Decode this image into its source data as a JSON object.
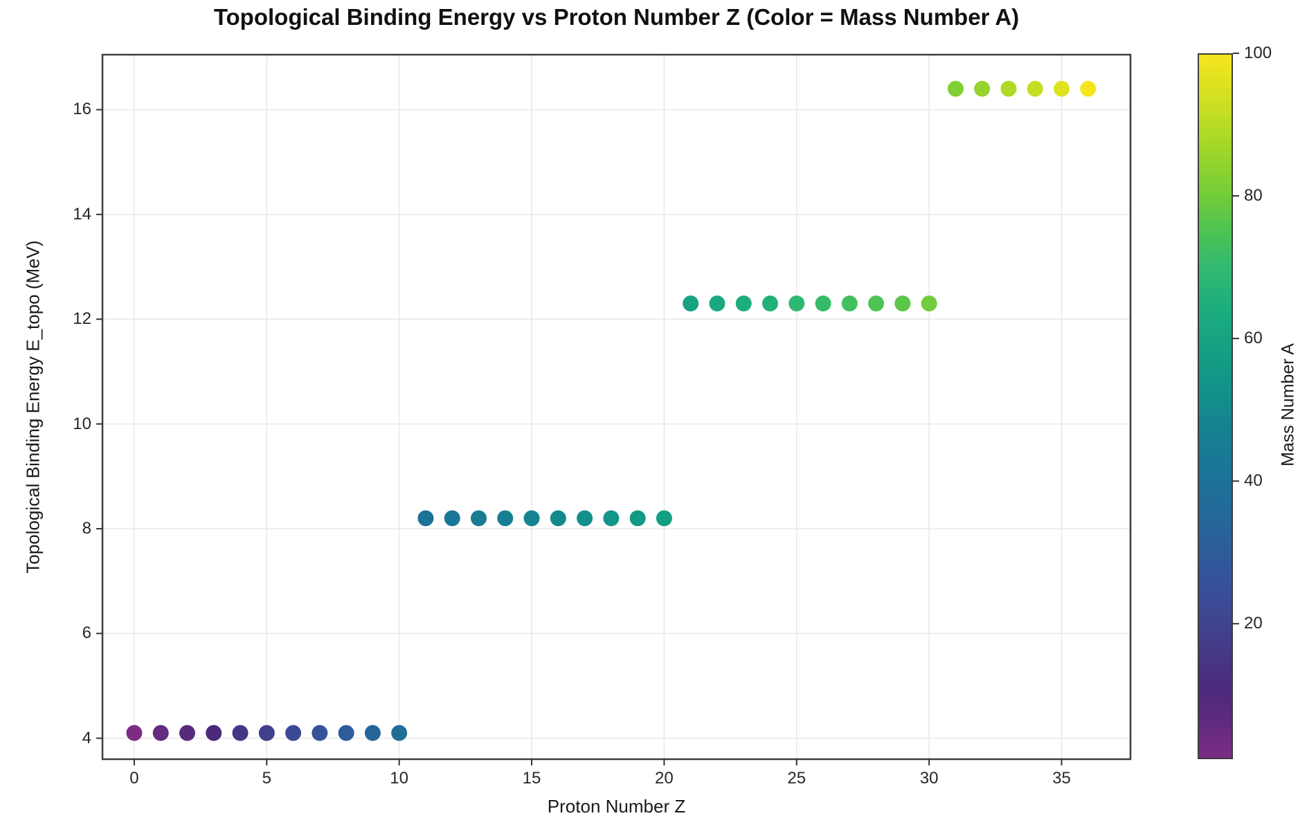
{
  "chart_data": {
    "type": "scatter",
    "title": "Topological Binding Energy vs Proton Number Z (Color = Mass Number A)",
    "xlabel": "Proton Number Z",
    "ylabel": "Topological Binding Energy E_topo (MeV)",
    "xlim": [
      -1.2,
      37.6
    ],
    "ylim": [
      3.6,
      17.05
    ],
    "x_ticks": [
      0,
      5,
      10,
      15,
      20,
      25,
      30,
      35
    ],
    "y_ticks": [
      4,
      6,
      8,
      10,
      12,
      14,
      16
    ],
    "grid": true,
    "legend": "colorbar-right",
    "colorbar": {
      "label": "Mass Number A",
      "ticks": [
        20,
        40,
        60,
        80,
        100
      ],
      "vmin": 1,
      "vmax": 100
    },
    "energy_levels": [
      4.1,
      8.2,
      12.3,
      16.4
    ],
    "points": [
      {
        "z": 0,
        "e": 4.1,
        "a": 1
      },
      {
        "z": 1,
        "e": 4.1,
        "a": 5
      },
      {
        "z": 2,
        "e": 4.1,
        "a": 8
      },
      {
        "z": 3,
        "e": 4.1,
        "a": 11
      },
      {
        "z": 4,
        "e": 4.1,
        "a": 15
      },
      {
        "z": 5,
        "e": 4.1,
        "a": 18
      },
      {
        "z": 6,
        "e": 4.1,
        "a": 22
      },
      {
        "z": 7,
        "e": 4.1,
        "a": 26
      },
      {
        "z": 8,
        "e": 4.1,
        "a": 30
      },
      {
        "z": 9,
        "e": 4.1,
        "a": 34
      },
      {
        "z": 10,
        "e": 4.1,
        "a": 38
      },
      {
        "z": 11,
        "e": 8.2,
        "a": 40
      },
      {
        "z": 12,
        "e": 8.2,
        "a": 42
      },
      {
        "z": 13,
        "e": 8.2,
        "a": 44
      },
      {
        "z": 14,
        "e": 8.2,
        "a": 46
      },
      {
        "z": 15,
        "e": 8.2,
        "a": 48
      },
      {
        "z": 16,
        "e": 8.2,
        "a": 50
      },
      {
        "z": 17,
        "e": 8.2,
        "a": 52
      },
      {
        "z": 18,
        "e": 8.2,
        "a": 54
      },
      {
        "z": 19,
        "e": 8.2,
        "a": 56
      },
      {
        "z": 20,
        "e": 8.2,
        "a": 58
      },
      {
        "z": 21,
        "e": 12.3,
        "a": 60
      },
      {
        "z": 22,
        "e": 12.3,
        "a": 62
      },
      {
        "z": 23,
        "e": 12.3,
        "a": 64
      },
      {
        "z": 24,
        "e": 12.3,
        "a": 66
      },
      {
        "z": 25,
        "e": 12.3,
        "a": 69
      },
      {
        "z": 26,
        "e": 12.3,
        "a": 71
      },
      {
        "z": 27,
        "e": 12.3,
        "a": 73
      },
      {
        "z": 28,
        "e": 12.3,
        "a": 75
      },
      {
        "z": 29,
        "e": 12.3,
        "a": 77
      },
      {
        "z": 30,
        "e": 12.3,
        "a": 80
      },
      {
        "z": 31,
        "e": 16.4,
        "a": 82
      },
      {
        "z": 32,
        "e": 16.4,
        "a": 85
      },
      {
        "z": 33,
        "e": 16.4,
        "a": 89
      },
      {
        "z": 34,
        "e": 16.4,
        "a": 92
      },
      {
        "z": 35,
        "e": 16.4,
        "a": 96
      },
      {
        "z": 36,
        "e": 16.4,
        "a": 100
      }
    ],
    "colormap_stops": [
      [
        0.0,
        "#7a2d82"
      ],
      [
        0.05,
        "#602a7e"
      ],
      [
        0.1,
        "#4c2a7b"
      ],
      [
        0.16,
        "#433c88"
      ],
      [
        0.22,
        "#3c4b95"
      ],
      [
        0.28,
        "#30599a"
      ],
      [
        0.34,
        "#256799"
      ],
      [
        0.4,
        "#1b7397"
      ],
      [
        0.46,
        "#178092"
      ],
      [
        0.52,
        "#12908a"
      ],
      [
        0.58,
        "#14a083"
      ],
      [
        0.64,
        "#1cad7d"
      ],
      [
        0.7,
        "#33ba6e"
      ],
      [
        0.76,
        "#55c54d"
      ],
      [
        0.8,
        "#74cc3a"
      ],
      [
        0.85,
        "#95d42c"
      ],
      [
        0.9,
        "#b7dc26"
      ],
      [
        0.95,
        "#d9e121"
      ],
      [
        1.0,
        "#f6e51e"
      ]
    ]
  },
  "colors": {
    "background": "#ffffff",
    "grid": "#e8e8e8",
    "spine": "#3d3d3d",
    "tick_mark": "#333333",
    "tick_text": "#262626",
    "title_text": "#111111"
  }
}
